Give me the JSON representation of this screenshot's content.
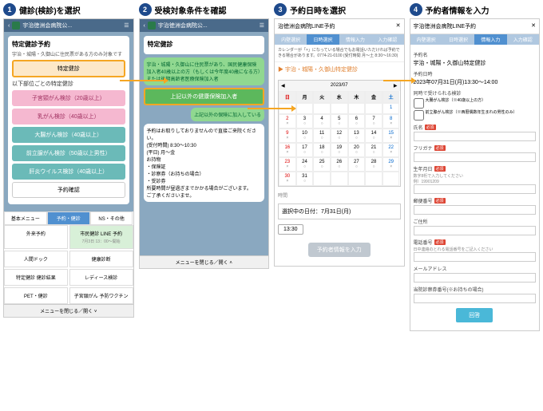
{
  "steps": [
    {
      "num": "1",
      "title": "健診(検診)を選択"
    },
    {
      "num": "2",
      "title": "受検対象条件を確認"
    },
    {
      "num": "3",
      "title": "予約日時を選択"
    },
    {
      "num": "4",
      "title": "予約者情報を入力"
    }
  ],
  "p1": {
    "header": "宇治徳洲会病院公...",
    "card_title": "特定健診予約",
    "card_sub": "宇治・城陽・久御山に住民票がある方のみ対象です",
    "btn_tokutei": "特定健診",
    "section": "以下部位ごとの特定健診",
    "btns": [
      "子宮頸がん検診（20歳以上）",
      "乳がん検診（40歳以上）",
      "大腸がん検診（40歳以上）",
      "前立腺がん検診（50歳以上男性）",
      "肝炎ウイルス検診（40歳以上）"
    ],
    "confirm": "予約確認",
    "tabs": [
      "基本メニュー",
      "予約・健診",
      "NS・その他"
    ],
    "grid": [
      "外来予約",
      "市民健診 LINE 予約",
      "人間ドック",
      "健康診断",
      "特定健診\n健診結果",
      "レディース検診",
      "PET・健診",
      "子宮頸がん\n予防ワクチン"
    ],
    "grid_sub": "7月3日 13：00～開始",
    "footer": "メニューを閉じる／開く ˅"
  },
  "p2": {
    "header": "宇治徳洲会病院公...",
    "card_title": "特定健診",
    "speech1": "宇治・城陽・久御山に住民票があり、国民健康保険加入者40歳以上の方（もしくは今年度40歳になる方）または後期高齢者医療保険加入者",
    "btn1": "上記以外の健康保険加入者",
    "speech2": "上記以外の保険に加入している",
    "note": "予約はお取りしておりませんので直接ご来院ください。\n(受付時間) 8:30～10:30\n(平日) 月～金\nお持物\n・保険証\n・診察券（お持ちの場合）\n・受診券\n所要時間が昼過ぎまでかかる場合がございます。\nご了承くださいませ。",
    "footer": "メニューを閉じる／開く ˄"
  },
  "p3": {
    "title": "治徳洲会病院LINE予約",
    "tabs": [
      "内壁選択",
      "日時選択",
      "情報入力",
      "入力確認"
    ],
    "info": "カレンダーが「×」になっている場合でもお電話いただければ予約できる場合があります。0774-21-0100 (受付時間 月～土 8:30～16:30)",
    "name": "宇治・城陽・久御山特定健診",
    "cal_month": "2023/07",
    "dow": [
      "日",
      "月",
      "火",
      "水",
      "木",
      "金",
      "土"
    ],
    "days": [
      [
        "",
        "",
        "",
        "",
        "",
        "",
        "1"
      ],
      [
        "2",
        "3",
        "4",
        "5",
        "6",
        "7",
        "8"
      ],
      [
        "9",
        "10",
        "11",
        "12",
        "13",
        "14",
        "15"
      ],
      [
        "16",
        "17",
        "18",
        "19",
        "20",
        "21",
        "22"
      ],
      [
        "23",
        "24",
        "25",
        "26",
        "27",
        "28",
        "29"
      ],
      [
        "30",
        "31",
        "",
        "",
        "",
        "",
        ""
      ]
    ],
    "time_label": "時間",
    "selected": "選択中の日付：7月31日(月)",
    "time": "13:30",
    "btn": "予約者情報を入力"
  },
  "p4": {
    "title": "宇治徳洲会病院LINE予約",
    "tabs": [
      "内壁選択",
      "日時選択",
      "情報入力",
      "入力確認"
    ],
    "f_name": "予約名",
    "v_name": "宇治・城陽・久御山特定健診",
    "f_dt": "予約日時",
    "v_dt": "2023年07月31日(月)13:30～14:00",
    "f_opt": "同時で受けられる検診",
    "opts": [
      "大腸がん検診（※40歳以上の方）",
      "前立腺がん検診（※西暦偶数年生まれの男性のみ）"
    ],
    "f_shi": "氏名",
    "f_furi": "フリガナ",
    "f_bd": "生年月日",
    "bd_hint": "数字8桁で入力してください\n例）19901209",
    "f_post": "郵便番号",
    "f_addr": "ご住所",
    "f_tel": "電話番号",
    "tel_hint": "日中連絡のとれる電話番号をご記入ください",
    "f_mail": "メールアドレス",
    "f_card": "当院診察券番号(※お持ちの場合)",
    "submit": "回答",
    "req": "必須"
  }
}
